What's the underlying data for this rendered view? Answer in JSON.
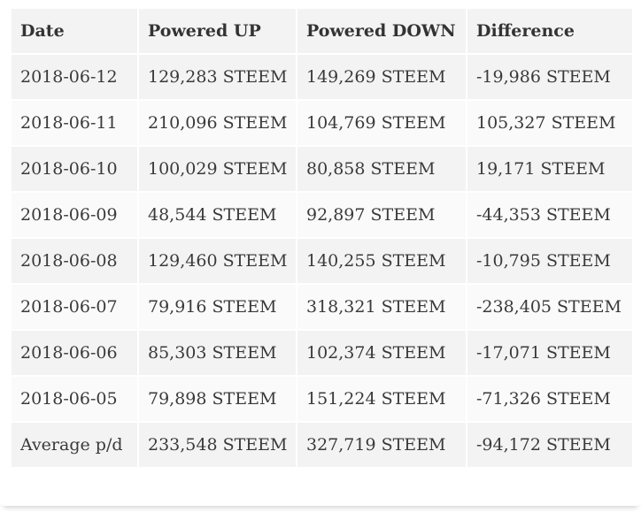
{
  "table": {
    "headers": [
      "Date",
      "Powered UP",
      "Powered DOWN",
      "Difference"
    ],
    "rows": [
      [
        "2018-06-12",
        "129,283 STEEM",
        "149,269 STEEM",
        "-19,986 STEEM"
      ],
      [
        "2018-06-11",
        "210,096 STEEM",
        "104,769 STEEM",
        "105,327 STEEM"
      ],
      [
        "2018-06-10",
        "100,029 STEEM",
        "80,858 STEEM",
        "19,171 STEEM"
      ],
      [
        "2018-06-09",
        "48,544 STEEM",
        "92,897 STEEM",
        "-44,353 STEEM"
      ],
      [
        "2018-06-08",
        "129,460 STEEM",
        "140,255 STEEM",
        "-10,795 STEEM"
      ],
      [
        "2018-06-07",
        "79,916 STEEM",
        "318,321 STEEM",
        "-238,405 STEEM"
      ],
      [
        "2018-06-06",
        "85,303 STEEM",
        "102,374 STEEM",
        "-17,071 STEEM"
      ],
      [
        "2018-06-05",
        "79,898 STEEM",
        "151,224 STEEM",
        "-71,326 STEEM"
      ],
      [
        "Average p/d",
        "233,548 STEEM",
        "327,719 STEEM",
        "-94,172 STEEM"
      ]
    ]
  }
}
